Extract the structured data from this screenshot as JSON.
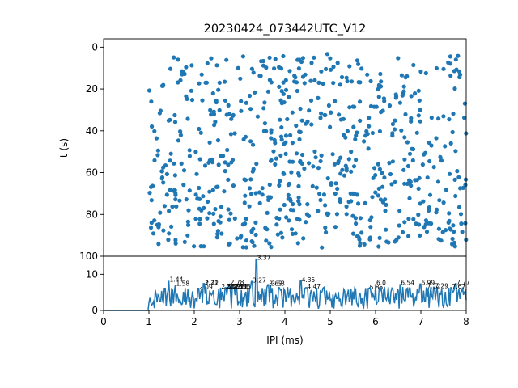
{
  "chart_data": [
    {
      "type": "scatter",
      "title": "20230424_073442UTC_V12",
      "xlabel": "",
      "ylabel": "t (s)",
      "xlim": [
        0,
        8
      ],
      "ylim": [
        100,
        -4
      ],
      "y_inverted": true,
      "yticks": [
        0,
        20,
        40,
        60,
        80,
        100
      ],
      "marker_color": "#1f77b4",
      "point_count": 700,
      "x_range_of_points": [
        1.0,
        8.0
      ],
      "t_range_of_points": [
        0,
        96
      ],
      "seed": 20230424,
      "note": "dense raster of inter-pulse intervals versus time; points distributed across IPI 1–8 ms and t 0–96 s, denser at t 50–95 s"
    },
    {
      "type": "line",
      "xlabel": "IPI (ms)",
      "ylabel": "",
      "xlim": [
        0,
        8
      ],
      "ylim": [
        0,
        15
      ],
      "xticks": [
        0,
        1,
        2,
        3,
        4,
        5,
        6,
        7,
        8
      ],
      "yticks": [
        0,
        10
      ],
      "line_color": "#1f77b4",
      "baseline_until": 1.0,
      "noise_level": [
        0.5,
        6.5
      ],
      "peaks": [
        {
          "x": 1.44,
          "y": 8.2,
          "label": "1.44"
        },
        {
          "x": 1.58,
          "y": 7.0,
          "label": "1.58"
        },
        {
          "x": 2.09,
          "y": 6.1,
          "label": "2.09"
        },
        {
          "x": 2.21,
          "y": 7.4,
          "label": "2.21"
        },
        {
          "x": 2.22,
          "y": 7.2,
          "label": "2.22"
        },
        {
          "x": 2.58,
          "y": 6.3,
          "label": "2.58"
        },
        {
          "x": 2.69,
          "y": 6.3,
          "label": "2.69"
        },
        {
          "x": 2.75,
          "y": 6.3,
          "label": "2.75"
        },
        {
          "x": 2.78,
          "y": 7.4,
          "label": "2.78"
        },
        {
          "x": 2.85,
          "y": 6.3,
          "label": "2.85"
        },
        {
          "x": 2.88,
          "y": 6.3,
          "label": "2.88"
        },
        {
          "x": 2.93,
          "y": 6.3,
          "label": "2.93"
        },
        {
          "x": 3.27,
          "y": 8.0,
          "label": "3.27"
        },
        {
          "x": 3.37,
          "y": 14.2,
          "label": "3.37"
        },
        {
          "x": 3.68,
          "y": 7.1,
          "label": "3.68"
        },
        {
          "x": 3.63,
          "y": 7.1,
          "label": "3.63"
        },
        {
          "x": 4.35,
          "y": 8.1,
          "label": "4.35"
        },
        {
          "x": 4.47,
          "y": 6.3,
          "label": "4.47"
        },
        {
          "x": 5.85,
          "y": 6.1,
          "label": "5.85"
        },
        {
          "x": 6.0,
          "y": 7.3,
          "label": "6.0"
        },
        {
          "x": 6.54,
          "y": 7.3,
          "label": "6.54"
        },
        {
          "x": 6.99,
          "y": 7.3,
          "label": "6.99"
        },
        {
          "x": 7.12,
          "y": 6.4,
          "label": "7.12"
        },
        {
          "x": 7.29,
          "y": 6.4,
          "label": "7.29"
        },
        {
          "x": 7.67,
          "y": 6.3,
          "label": "7.67"
        },
        {
          "x": 7.77,
          "y": 7.4,
          "label": "7.77"
        }
      ]
    }
  ]
}
